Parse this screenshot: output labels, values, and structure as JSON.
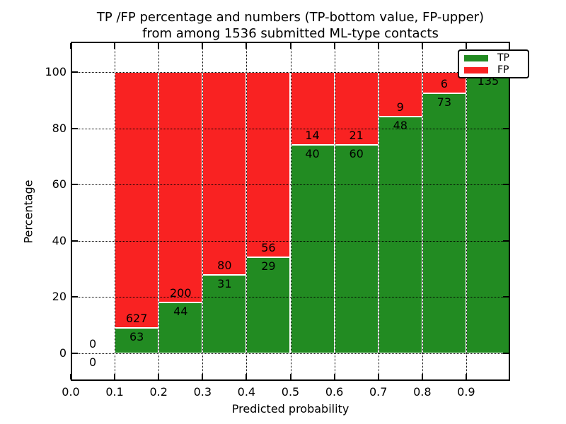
{
  "figure": {
    "title_line1": "TP /FP percentage and numbers (TP-bottom value, FP-upper)",
    "title_line2": "from among 1536 submitted ML-type contacts"
  },
  "colors": {
    "tp_green": "#228b22",
    "fp_red": "#f92222",
    "grid": "#000000",
    "background": "#ffffff"
  },
  "chart_data": {
    "type": "bar",
    "subtype": "stacked_percentage",
    "title": "TP /FP percentage and numbers (TP-bottom value, FP-upper) from among 1536 submitted ML-type contacts",
    "xlabel": "Predicted probability",
    "ylabel": "Percentage",
    "total_contacts": 1536,
    "xlim": [
      0.0,
      1.0
    ],
    "ylim": [
      -10,
      111
    ],
    "grid": "dotted",
    "bin_width": 0.1,
    "x_ticks": [
      {
        "v": 0.0,
        "label": "0.0"
      },
      {
        "v": 0.1,
        "label": "0.1"
      },
      {
        "v": 0.2,
        "label": "0.2"
      },
      {
        "v": 0.3,
        "label": "0.3"
      },
      {
        "v": 0.4,
        "label": "0.4"
      },
      {
        "v": 0.5,
        "label": "0.5"
      },
      {
        "v": 0.6,
        "label": "0.6"
      },
      {
        "v": 0.7,
        "label": "0.7"
      },
      {
        "v": 0.8,
        "label": "0.8"
      },
      {
        "v": 0.9,
        "label": "0.9"
      }
    ],
    "y_ticks": [
      {
        "v": 0,
        "label": "0"
      },
      {
        "v": 20,
        "label": "20"
      },
      {
        "v": 40,
        "label": "40"
      },
      {
        "v": 60,
        "label": "60"
      },
      {
        "v": 80,
        "label": "80"
      },
      {
        "v": 100,
        "label": "100"
      }
    ],
    "legend": {
      "position": "upper right",
      "entries": [
        {
          "label": "TP",
          "color": "#228b22"
        },
        {
          "label": "FP",
          "color": "#f92222"
        }
      ]
    },
    "bins": [
      {
        "range": [
          0.0,
          0.1
        ],
        "tp": 0,
        "fp": 0
      },
      {
        "range": [
          0.1,
          0.2
        ],
        "tp": 63,
        "fp": 627
      },
      {
        "range": [
          0.2,
          0.3
        ],
        "tp": 44,
        "fp": 200
      },
      {
        "range": [
          0.3,
          0.4
        ],
        "tp": 31,
        "fp": 80
      },
      {
        "range": [
          0.4,
          0.5
        ],
        "tp": 29,
        "fp": 56
      },
      {
        "range": [
          0.5,
          0.6
        ],
        "tp": 40,
        "fp": 14
      },
      {
        "range": [
          0.6,
          0.7
        ],
        "tp": 60,
        "fp": 21
      },
      {
        "range": [
          0.7,
          0.8
        ],
        "tp": 48,
        "fp": 9
      },
      {
        "range": [
          0.8,
          0.9
        ],
        "tp": 73,
        "fp": 6
      },
      {
        "range": [
          0.9,
          1.0
        ],
        "tp": 135,
        "fp": 0
      }
    ]
  }
}
